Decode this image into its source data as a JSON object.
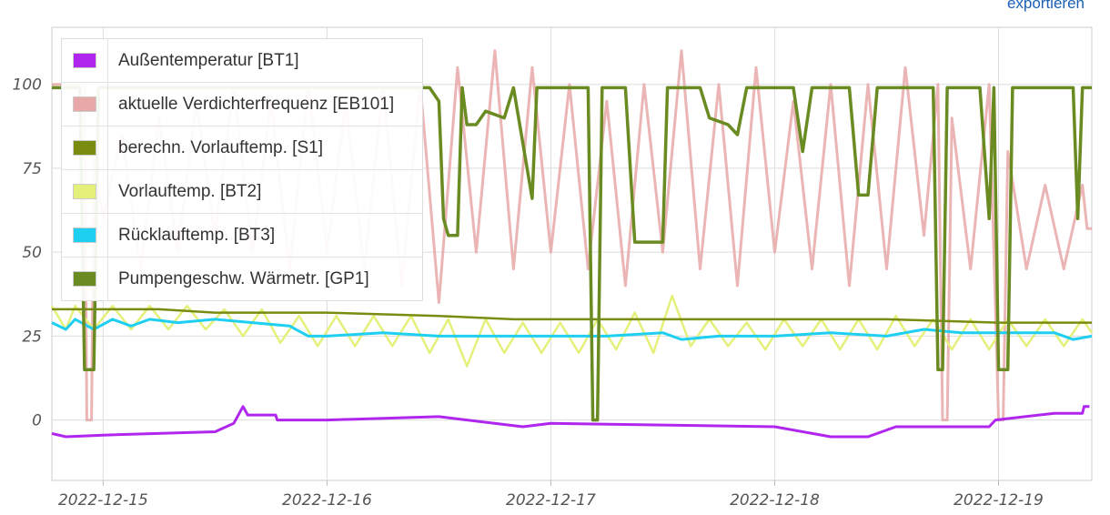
{
  "toolbar": {
    "export_label": "exportieren"
  },
  "chart_data": {
    "type": "line",
    "x_start": "2022-12-14T18:30",
    "x_end": "2022-12-19T10:00",
    "x_tick_labels": [
      "2022-12-15",
      "2022-12-16",
      "2022-12-17",
      "2022-12-18",
      "2022-12-19"
    ],
    "y_ticks": [
      0,
      25,
      50,
      75,
      100
    ],
    "ylim": [
      -18,
      117
    ],
    "grid": true,
    "legend_placement": "top-left",
    "series": [
      {
        "name": "Außentemperatur [BT1]",
        "color": "#b026ee",
        "points": [
          [
            "2022-12-14T18:30",
            -4
          ],
          [
            "2022-12-14T20:00",
            -5
          ],
          [
            "2022-12-15T00:00",
            -4.5
          ],
          [
            "2022-12-15T12:00",
            -3.5
          ],
          [
            "2022-12-15T14:00",
            -1
          ],
          [
            "2022-12-15T15:00",
            4
          ],
          [
            "2022-12-15T15:30",
            1.5
          ],
          [
            "2022-12-15T18:30",
            1.5
          ],
          [
            "2022-12-15T18:40",
            0
          ],
          [
            "2022-12-16T00:00",
            0
          ],
          [
            "2022-12-16T12:00",
            1
          ],
          [
            "2022-12-16T21:00",
            -2
          ],
          [
            "2022-12-17T00:00",
            -1
          ],
          [
            "2022-12-17T12:00",
            -1.5
          ],
          [
            "2022-12-18T00:00",
            -2
          ],
          [
            "2022-12-18T06:00",
            -5
          ],
          [
            "2022-12-18T10:00",
            -5
          ],
          [
            "2022-12-18T13:00",
            -2
          ],
          [
            "2022-12-18T18:00",
            -2
          ],
          [
            "2022-12-18T23:00",
            -2
          ],
          [
            "2022-12-18T23:40",
            0
          ],
          [
            "2022-12-19T06:00",
            2
          ],
          [
            "2022-12-19T09:00",
            2
          ],
          [
            "2022-12-19T09:10",
            4
          ],
          [
            "2022-12-19T09:45",
            4
          ]
        ]
      },
      {
        "name": "aktuelle Verdichterfrequenz [EB101]",
        "color": "#e8a8a8",
        "points": [
          [
            "2022-12-14T18:30",
            100
          ],
          [
            "2022-12-14T22:00",
            100
          ],
          [
            "2022-12-14T22:15",
            0
          ],
          [
            "2022-12-14T22:45",
            0
          ],
          [
            "2022-12-14T23:00",
            78
          ],
          [
            "2022-12-15T00:00",
            60
          ],
          [
            "2022-12-15T02:00",
            85
          ],
          [
            "2022-12-15T04:00",
            45
          ],
          [
            "2022-12-15T06:00",
            90
          ],
          [
            "2022-12-15T08:00",
            50
          ],
          [
            "2022-12-15T10:00",
            95
          ],
          [
            "2022-12-15T12:00",
            55
          ],
          [
            "2022-12-15T14:00",
            100
          ],
          [
            "2022-12-15T16:00",
            50
          ],
          [
            "2022-12-15T18:00",
            95
          ],
          [
            "2022-12-15T20:00",
            45
          ],
          [
            "2022-12-15T22:00",
            100
          ],
          [
            "2022-12-16T00:00",
            50
          ],
          [
            "2022-12-16T02:00",
            95
          ],
          [
            "2022-12-16T04:00",
            45
          ],
          [
            "2022-12-16T06:00",
            100
          ],
          [
            "2022-12-16T08:00",
            40
          ],
          [
            "2022-12-16T10:00",
            100
          ],
          [
            "2022-12-16T12:00",
            35
          ],
          [
            "2022-12-16T14:00",
            105
          ],
          [
            "2022-12-16T16:00",
            50
          ],
          [
            "2022-12-16T18:00",
            110
          ],
          [
            "2022-12-16T20:00",
            45
          ],
          [
            "2022-12-16T22:00",
            105
          ],
          [
            "2022-12-17T00:00",
            50
          ],
          [
            "2022-12-17T02:00",
            100
          ],
          [
            "2022-12-17T04:00",
            45
          ],
          [
            "2022-12-17T06:00",
            95
          ],
          [
            "2022-12-17T08:00",
            40
          ],
          [
            "2022-12-17T10:00",
            100
          ],
          [
            "2022-12-17T12:00",
            50
          ],
          [
            "2022-12-17T14:00",
            110
          ],
          [
            "2022-12-17T16:00",
            45
          ],
          [
            "2022-12-17T18:00",
            100
          ],
          [
            "2022-12-17T20:00",
            40
          ],
          [
            "2022-12-17T22:00",
            105
          ],
          [
            "2022-12-18T00:00",
            50
          ],
          [
            "2022-12-18T02:00",
            95
          ],
          [
            "2022-12-18T04:00",
            45
          ],
          [
            "2022-12-18T06:00",
            100
          ],
          [
            "2022-12-18T08:00",
            40
          ],
          [
            "2022-12-18T10:00",
            100
          ],
          [
            "2022-12-18T12:00",
            45
          ],
          [
            "2022-12-18T14:00",
            105
          ],
          [
            "2022-12-18T16:00",
            55
          ],
          [
            "2022-12-18T17:30",
            100
          ],
          [
            "2022-12-18T18:00",
            0
          ],
          [
            "2022-12-18T18:30",
            0
          ],
          [
            "2022-12-18T19:00",
            90
          ],
          [
            "2022-12-18T21:00",
            45
          ],
          [
            "2022-12-18T23:00",
            100
          ],
          [
            "2022-12-19T00:00",
            0
          ],
          [
            "2022-12-19T00:30",
            0
          ],
          [
            "2022-12-19T01:00",
            80
          ],
          [
            "2022-12-19T03:00",
            45
          ],
          [
            "2022-12-19T05:00",
            70
          ],
          [
            "2022-12-19T07:00",
            45
          ],
          [
            "2022-12-19T09:00",
            70
          ],
          [
            "2022-12-19T09:30",
            57
          ],
          [
            "2022-12-19T10:00",
            57
          ]
        ]
      },
      {
        "name": "berechn. Vorlauftemp. [S1]",
        "color": "#7a8c10",
        "points": [
          [
            "2022-12-14T18:30",
            33
          ],
          [
            "2022-12-15T06:00",
            33
          ],
          [
            "2022-12-15T12:00",
            32
          ],
          [
            "2022-12-16T00:00",
            32
          ],
          [
            "2022-12-16T12:00",
            31
          ],
          [
            "2022-12-16T20:00",
            30
          ],
          [
            "2022-12-17T00:00",
            30
          ],
          [
            "2022-12-17T12:00",
            30
          ],
          [
            "2022-12-18T00:00",
            30
          ],
          [
            "2022-12-18T12:00",
            30
          ],
          [
            "2022-12-19T00:00",
            29
          ],
          [
            "2022-12-19T10:00",
            29
          ]
        ]
      },
      {
        "name": "Vorlauftemp. [BT2]",
        "color": "#e4f07a",
        "points": [
          [
            "2022-12-14T18:30",
            34
          ],
          [
            "2022-12-14T20:00",
            27
          ],
          [
            "2022-12-14T21:00",
            34
          ],
          [
            "2022-12-14T23:00",
            27
          ],
          [
            "2022-12-15T01:00",
            34
          ],
          [
            "2022-12-15T03:00",
            27
          ],
          [
            "2022-12-15T05:00",
            34
          ],
          [
            "2022-12-15T07:00",
            27
          ],
          [
            "2022-12-15T09:00",
            34
          ],
          [
            "2022-12-15T11:00",
            27
          ],
          [
            "2022-12-15T13:00",
            33
          ],
          [
            "2022-12-15T15:00",
            25
          ],
          [
            "2022-12-15T17:00",
            33
          ],
          [
            "2022-12-15T19:00",
            23
          ],
          [
            "2022-12-15T21:00",
            31
          ],
          [
            "2022-12-15T23:00",
            22
          ],
          [
            "2022-12-16T01:00",
            31
          ],
          [
            "2022-12-16T03:00",
            22
          ],
          [
            "2022-12-16T05:00",
            31
          ],
          [
            "2022-12-16T07:00",
            22
          ],
          [
            "2022-12-16T09:00",
            31
          ],
          [
            "2022-12-16T11:00",
            20
          ],
          [
            "2022-12-16T13:00",
            30
          ],
          [
            "2022-12-16T15:00",
            16
          ],
          [
            "2022-12-16T17:00",
            30
          ],
          [
            "2022-12-16T19:00",
            20
          ],
          [
            "2022-12-16T21:00",
            29
          ],
          [
            "2022-12-16T23:00",
            20
          ],
          [
            "2022-12-17T01:00",
            29
          ],
          [
            "2022-12-17T03:00",
            20
          ],
          [
            "2022-12-17T05:00",
            30
          ],
          [
            "2022-12-17T07:00",
            21
          ],
          [
            "2022-12-17T09:00",
            32
          ],
          [
            "2022-12-17T11:00",
            20
          ],
          [
            "2022-12-17T13:00",
            37
          ],
          [
            "2022-12-17T15:00",
            22
          ],
          [
            "2022-12-17T17:00",
            30
          ],
          [
            "2022-12-17T19:00",
            22
          ],
          [
            "2022-12-17T21:00",
            29
          ],
          [
            "2022-12-17T23:00",
            21
          ],
          [
            "2022-12-18T01:00",
            30
          ],
          [
            "2022-12-18T03:00",
            22
          ],
          [
            "2022-12-18T05:00",
            30
          ],
          [
            "2022-12-18T07:00",
            21
          ],
          [
            "2022-12-18T09:00",
            30
          ],
          [
            "2022-12-18T11:00",
            21
          ],
          [
            "2022-12-18T13:00",
            31
          ],
          [
            "2022-12-18T15:00",
            22
          ],
          [
            "2022-12-18T17:00",
            30
          ],
          [
            "2022-12-18T19:00",
            21
          ],
          [
            "2022-12-18T21:00",
            30
          ],
          [
            "2022-12-18T23:00",
            21
          ],
          [
            "2022-12-19T01:00",
            30
          ],
          [
            "2022-12-19T03:00",
            22
          ],
          [
            "2022-12-19T05:00",
            30
          ],
          [
            "2022-12-19T07:00",
            22
          ],
          [
            "2022-12-19T09:00",
            30
          ],
          [
            "2022-12-19T10:00",
            26
          ]
        ]
      },
      {
        "name": "Rücklauftemp. [BT3]",
        "color": "#1fcff2",
        "points": [
          [
            "2022-12-14T18:30",
            29
          ],
          [
            "2022-12-14T20:00",
            27
          ],
          [
            "2022-12-14T21:00",
            30
          ],
          [
            "2022-12-14T23:00",
            27
          ],
          [
            "2022-12-15T01:00",
            30
          ],
          [
            "2022-12-15T03:00",
            28
          ],
          [
            "2022-12-15T05:00",
            30
          ],
          [
            "2022-12-15T08:00",
            29
          ],
          [
            "2022-12-15T12:00",
            30
          ],
          [
            "2022-12-15T16:00",
            29
          ],
          [
            "2022-12-15T20:00",
            28
          ],
          [
            "2022-12-15T22:00",
            25
          ],
          [
            "2022-12-16T00:00",
            25
          ],
          [
            "2022-12-16T06:00",
            26
          ],
          [
            "2022-12-16T12:00",
            25
          ],
          [
            "2022-12-16T18:00",
            25
          ],
          [
            "2022-12-17T00:00",
            25
          ],
          [
            "2022-12-17T06:00",
            25
          ],
          [
            "2022-12-17T12:00",
            26
          ],
          [
            "2022-12-17T14:00",
            24
          ],
          [
            "2022-12-17T18:00",
            25
          ],
          [
            "2022-12-18T00:00",
            25
          ],
          [
            "2022-12-18T06:00",
            26
          ],
          [
            "2022-12-18T12:00",
            25
          ],
          [
            "2022-12-18T16:00",
            27
          ],
          [
            "2022-12-18T20:00",
            26
          ],
          [
            "2022-12-19T00:00",
            26
          ],
          [
            "2022-12-19T06:00",
            26
          ],
          [
            "2022-12-19T08:00",
            24
          ],
          [
            "2022-12-19T10:00",
            25
          ]
        ]
      },
      {
        "name": "Pumpengeschw. Wärmetr. [GP1]",
        "color": "#6a8a22",
        "points": [
          [
            "2022-12-14T18:30",
            99
          ],
          [
            "2022-12-14T21:30",
            99
          ],
          [
            "2022-12-14T22:00",
            15
          ],
          [
            "2022-12-14T23:00",
            15
          ],
          [
            "2022-12-14T23:30",
            99
          ],
          [
            "2022-12-16T11:00",
            99
          ],
          [
            "2022-12-16T12:00",
            95
          ],
          [
            "2022-12-16T12:30",
            60
          ],
          [
            "2022-12-16T13:00",
            55
          ],
          [
            "2022-12-16T14:00",
            55
          ],
          [
            "2022-12-16T14:30",
            99
          ],
          [
            "2022-12-16T15:00",
            88
          ],
          [
            "2022-12-16T16:00",
            88
          ],
          [
            "2022-12-16T17:00",
            92
          ],
          [
            "2022-12-16T19:00",
            90
          ],
          [
            "2022-12-16T20:00",
            99
          ],
          [
            "2022-12-16T22:00",
            66
          ],
          [
            "2022-12-16T22:30",
            99
          ],
          [
            "2022-12-17T04:00",
            99
          ],
          [
            "2022-12-17T04:30",
            0
          ],
          [
            "2022-12-17T05:00",
            0
          ],
          [
            "2022-12-17T05:30",
            99
          ],
          [
            "2022-12-17T08:00",
            99
          ],
          [
            "2022-12-17T09:00",
            53
          ],
          [
            "2022-12-17T12:00",
            53
          ],
          [
            "2022-12-17T12:30",
            99
          ],
          [
            "2022-12-17T16:00",
            99
          ],
          [
            "2022-12-17T17:00",
            90
          ],
          [
            "2022-12-17T19:00",
            88
          ],
          [
            "2022-12-17T20:00",
            85
          ],
          [
            "2022-12-17T21:00",
            99
          ],
          [
            "2022-12-18T02:00",
            99
          ],
          [
            "2022-12-18T03:00",
            80
          ],
          [
            "2022-12-18T04:00",
            99
          ],
          [
            "2022-12-18T08:00",
            99
          ],
          [
            "2022-12-18T09:00",
            67
          ],
          [
            "2022-12-18T10:00",
            67
          ],
          [
            "2022-12-18T11:00",
            99
          ],
          [
            "2022-12-18T17:00",
            99
          ],
          [
            "2022-12-18T17:30",
            15
          ],
          [
            "2022-12-18T18:00",
            15
          ],
          [
            "2022-12-18T18:30",
            99
          ],
          [
            "2022-12-18T22:00",
            99
          ],
          [
            "2022-12-18T23:00",
            60
          ],
          [
            "2022-12-18T23:30",
            99
          ],
          [
            "2022-12-19T00:00",
            15
          ],
          [
            "2022-12-19T01:00",
            15
          ],
          [
            "2022-12-19T01:30",
            99
          ],
          [
            "2022-12-19T08:00",
            99
          ],
          [
            "2022-12-19T08:30",
            60
          ],
          [
            "2022-12-19T09:00",
            99
          ],
          [
            "2022-12-19T10:00",
            99
          ]
        ]
      }
    ]
  }
}
